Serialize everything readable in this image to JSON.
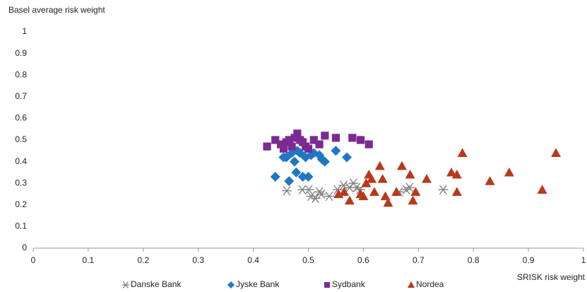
{
  "chart_data": {
    "type": "scatter",
    "title": "Basel average risk weight",
    "x_label": "SRISK risk weight",
    "xlim": [
      0,
      1
    ],
    "ylim": [
      0,
      1
    ],
    "xticks": [
      0,
      0.1,
      0.2,
      0.3,
      0.4,
      0.5,
      0.6,
      0.7,
      0.8,
      0.9,
      1
    ],
    "yticks": [
      0,
      0.1,
      0.2,
      0.3,
      0.4,
      0.5,
      0.6,
      0.7,
      0.8,
      0.9,
      1
    ],
    "grid": false,
    "legend": "bottom",
    "series": [
      {
        "name": "Danske Bank",
        "color": "#7f7f7f",
        "marker": "asterisk",
        "x": [
          0.461,
          0.489,
          0.501,
          0.505,
          0.513,
          0.52,
          0.524,
          0.538,
          0.553,
          0.564,
          0.575,
          0.582,
          0.588,
          0.594,
          0.665,
          0.678,
          0.684,
          0.745
        ],
        "values": [
          0.265,
          0.27,
          0.27,
          0.24,
          0.23,
          0.26,
          0.25,
          0.24,
          0.27,
          0.29,
          0.28,
          0.3,
          0.28,
          0.27,
          0.26,
          0.27,
          0.28,
          0.27
        ]
      },
      {
        "name": "Jyske Bank",
        "color": "#1f77c4",
        "marker": "diamond",
        "x": [
          0.44,
          0.455,
          0.46,
          0.465,
          0.47,
          0.475,
          0.478,
          0.485,
          0.49,
          0.495,
          0.5,
          0.505,
          0.52,
          0.525,
          0.53,
          0.55,
          0.57,
          0.48,
          0.51
        ],
        "values": [
          0.33,
          0.42,
          0.42,
          0.31,
          0.44,
          0.4,
          0.35,
          0.44,
          0.33,
          0.42,
          0.33,
          0.43,
          0.43,
          0.41,
          0.4,
          0.45,
          0.42,
          0.45,
          0.44
        ]
      },
      {
        "name": "Sydbank",
        "color": "#7b2a93",
        "marker": "square",
        "x": [
          0.425,
          0.44,
          0.45,
          0.455,
          0.46,
          0.465,
          0.47,
          0.475,
          0.48,
          0.485,
          0.49,
          0.495,
          0.5,
          0.51,
          0.52,
          0.53,
          0.55,
          0.58,
          0.595,
          0.61
        ],
        "values": [
          0.47,
          0.5,
          0.48,
          0.46,
          0.49,
          0.5,
          0.47,
          0.51,
          0.53,
          0.5,
          0.49,
          0.47,
          0.46,
          0.5,
          0.48,
          0.52,
          0.51,
          0.51,
          0.5,
          0.48
        ]
      },
      {
        "name": "Nordea",
        "color": "#b8391a",
        "marker": "triangle",
        "x": [
          0.555,
          0.565,
          0.575,
          0.595,
          0.6,
          0.605,
          0.61,
          0.615,
          0.62,
          0.63,
          0.635,
          0.64,
          0.645,
          0.66,
          0.67,
          0.685,
          0.69,
          0.695,
          0.715,
          0.76,
          0.77,
          0.77,
          0.78,
          0.83,
          0.865,
          0.925,
          0.95
        ],
        "values": [
          0.25,
          0.26,
          0.22,
          0.25,
          0.24,
          0.3,
          0.34,
          0.32,
          0.26,
          0.38,
          0.32,
          0.24,
          0.21,
          0.26,
          0.38,
          0.34,
          0.22,
          0.26,
          0.32,
          0.35,
          0.34,
          0.26,
          0.44,
          0.31,
          0.35,
          0.27,
          0.44
        ]
      }
    ]
  }
}
